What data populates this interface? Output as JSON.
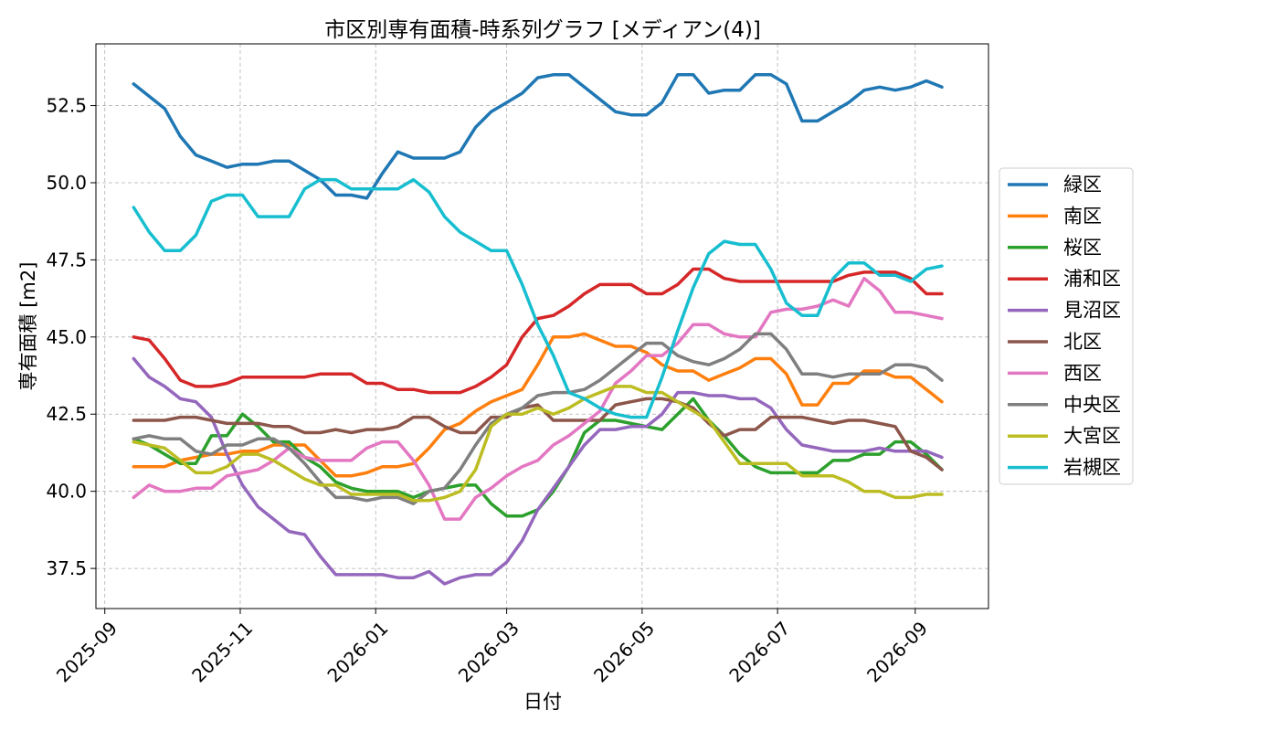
{
  "chart_data": {
    "type": "line",
    "title": "市区別専有面積-時系列グラフ [メディアン(4)]",
    "xlabel": "日付",
    "ylabel": "専有面積 [m2]",
    "x_start": "2025-09-14",
    "x_step_days": 7,
    "xlim": [
      "2025-08-28",
      "2026-10-04"
    ],
    "ylim": [
      36.2,
      54.5
    ],
    "xticks": [
      "2025-09",
      "2025-11",
      "2026-01",
      "2026-03",
      "2026-05",
      "2026-07",
      "2026-09"
    ],
    "xtick_dates": [
      "2025-09-01",
      "2025-11-01",
      "2026-01-01",
      "2026-03-01",
      "2026-05-01",
      "2026-07-01",
      "2026-09-01"
    ],
    "yticks": [
      "37.5",
      "40.0",
      "42.5",
      "45.0",
      "47.5",
      "50.0",
      "52.5"
    ],
    "ytick_values": [
      37.5,
      40.0,
      42.5,
      45.0,
      47.5,
      50.0,
      52.5
    ],
    "grid": true,
    "legend_position": "right",
    "series": [
      {
        "name": "緑区",
        "color": "#1f77b4",
        "values": [
          53.2,
          52.8,
          52.4,
          51.5,
          50.9,
          50.7,
          50.5,
          50.6,
          50.6,
          50.7,
          50.7,
          50.4,
          50.1,
          49.6,
          49.6,
          49.5,
          50.3,
          51.0,
          50.8,
          50.8,
          50.8,
          51.0,
          51.8,
          52.3,
          52.6,
          52.9,
          53.4,
          53.5,
          53.5,
          53.1,
          52.7,
          52.3,
          52.2,
          52.2,
          52.6,
          53.5,
          53.5,
          52.9,
          53.0,
          53.0,
          53.5,
          53.5,
          53.2,
          52.0,
          52.0,
          52.3,
          52.6,
          53.0,
          53.1,
          53.0,
          53.1,
          53.3,
          53.1
        ]
      },
      {
        "name": "南区",
        "color": "#ff7f0e",
        "values": [
          40.8,
          40.8,
          40.8,
          41.0,
          41.1,
          41.2,
          41.2,
          41.3,
          41.3,
          41.5,
          41.5,
          41.5,
          41.0,
          40.5,
          40.5,
          40.6,
          40.8,
          40.8,
          40.9,
          41.4,
          42.0,
          42.2,
          42.6,
          42.9,
          43.1,
          43.3,
          44.1,
          45.0,
          45.0,
          45.1,
          44.9,
          44.7,
          44.7,
          44.5,
          44.1,
          43.9,
          43.9,
          43.6,
          43.8,
          44.0,
          44.3,
          44.3,
          43.8,
          42.8,
          42.8,
          43.5,
          43.5,
          43.9,
          43.9,
          43.7,
          43.7,
          43.3,
          42.9
        ]
      },
      {
        "name": "桜区",
        "color": "#2ca02c",
        "values": [
          41.7,
          41.5,
          41.2,
          40.9,
          40.9,
          41.8,
          41.8,
          42.5,
          42.1,
          41.6,
          41.6,
          41.1,
          40.8,
          40.3,
          40.1,
          40.0,
          40.0,
          40.0,
          39.8,
          40.0,
          40.1,
          40.2,
          40.2,
          39.6,
          39.2,
          39.2,
          39.4,
          40.0,
          40.8,
          41.9,
          42.3,
          42.3,
          42.2,
          42.1,
          42.0,
          42.5,
          43.0,
          42.3,
          41.8,
          41.2,
          40.8,
          40.6,
          40.6,
          40.6,
          40.6,
          41.0,
          41.0,
          41.2,
          41.2,
          41.6,
          41.6,
          41.2,
          40.7
        ]
      },
      {
        "name": "浦和区",
        "color": "#d62728",
        "values": [
          45.0,
          44.9,
          44.3,
          43.6,
          43.4,
          43.4,
          43.5,
          43.7,
          43.7,
          43.7,
          43.7,
          43.7,
          43.8,
          43.8,
          43.8,
          43.5,
          43.5,
          43.3,
          43.3,
          43.2,
          43.2,
          43.2,
          43.4,
          43.7,
          44.1,
          45.0,
          45.6,
          45.7,
          46.0,
          46.4,
          46.7,
          46.7,
          46.7,
          46.4,
          46.4,
          46.7,
          47.2,
          47.2,
          46.9,
          46.8,
          46.8,
          46.8,
          46.8,
          46.8,
          46.8,
          46.8,
          47.0,
          47.1,
          47.1,
          47.1,
          46.9,
          46.4,
          46.4
        ]
      },
      {
        "name": "見沼区",
        "color": "#9467bd",
        "values": [
          44.3,
          43.7,
          43.4,
          43.0,
          42.9,
          42.4,
          41.2,
          40.2,
          39.5,
          39.1,
          38.7,
          38.6,
          37.9,
          37.3,
          37.3,
          37.3,
          37.3,
          37.2,
          37.2,
          37.4,
          37.0,
          37.2,
          37.3,
          37.3,
          37.7,
          38.4,
          39.4,
          40.1,
          40.8,
          41.5,
          42.0,
          42.0,
          42.1,
          42.1,
          42.5,
          43.2,
          43.2,
          43.1,
          43.1,
          43.0,
          43.0,
          42.7,
          42.0,
          41.5,
          41.4,
          41.3,
          41.3,
          41.3,
          41.4,
          41.3,
          41.3,
          41.3,
          41.1
        ]
      },
      {
        "name": "北区",
        "color": "#8c564b",
        "values": [
          42.3,
          42.3,
          42.3,
          42.4,
          42.4,
          42.3,
          42.2,
          42.2,
          42.2,
          42.1,
          42.1,
          41.9,
          41.9,
          42.0,
          41.9,
          42.0,
          42.0,
          42.1,
          42.4,
          42.4,
          42.1,
          41.9,
          41.9,
          42.4,
          42.4,
          42.7,
          42.8,
          42.3,
          42.3,
          42.3,
          42.3,
          42.8,
          42.9,
          43.0,
          43.0,
          42.9,
          42.7,
          42.2,
          41.8,
          42.0,
          42.0,
          42.4,
          42.4,
          42.4,
          42.3,
          42.2,
          42.3,
          42.3,
          42.2,
          42.1,
          41.3,
          41.1,
          40.7
        ]
      },
      {
        "name": "西区",
        "color": "#e377c2",
        "values": [
          39.8,
          40.2,
          40.0,
          40.0,
          40.1,
          40.1,
          40.5,
          40.6,
          40.7,
          41.0,
          41.4,
          41.1,
          41.0,
          41.0,
          41.0,
          41.4,
          41.6,
          41.6,
          41.0,
          40.2,
          39.1,
          39.1,
          39.8,
          40.1,
          40.5,
          40.8,
          41.0,
          41.5,
          41.8,
          42.2,
          42.6,
          43.5,
          43.9,
          44.4,
          44.4,
          44.8,
          45.4,
          45.4,
          45.1,
          45.0,
          45.0,
          45.8,
          45.9,
          45.9,
          46.0,
          46.2,
          46.0,
          46.9,
          46.5,
          45.8,
          45.8,
          45.7,
          45.6
        ]
      },
      {
        "name": "中央区",
        "color": "#7f7f7f",
        "values": [
          41.7,
          41.8,
          41.7,
          41.7,
          41.3,
          41.2,
          41.5,
          41.5,
          41.7,
          41.7,
          41.4,
          40.9,
          40.3,
          39.8,
          39.8,
          39.7,
          39.8,
          39.8,
          39.6,
          40.0,
          40.1,
          40.7,
          41.5,
          42.2,
          42.5,
          42.7,
          43.1,
          43.2,
          43.2,
          43.3,
          43.6,
          44.0,
          44.4,
          44.8,
          44.8,
          44.4,
          44.2,
          44.1,
          44.3,
          44.6,
          45.1,
          45.1,
          44.6,
          43.8,
          43.8,
          43.7,
          43.8,
          43.8,
          43.8,
          44.1,
          44.1,
          44.0,
          43.6
        ]
      },
      {
        "name": "大宮区",
        "color": "#bcbd22",
        "values": [
          41.6,
          41.5,
          41.4,
          41.0,
          40.6,
          40.6,
          40.8,
          41.2,
          41.2,
          41.0,
          40.7,
          40.4,
          40.2,
          40.2,
          39.9,
          39.9,
          39.9,
          39.9,
          39.7,
          39.7,
          39.8,
          40.0,
          40.7,
          42.1,
          42.5,
          42.5,
          42.7,
          42.5,
          42.7,
          43.0,
          43.2,
          43.4,
          43.4,
          43.2,
          43.2,
          42.9,
          42.6,
          42.3,
          41.6,
          40.9,
          40.9,
          40.9,
          40.9,
          40.5,
          40.5,
          40.5,
          40.3,
          40.0,
          40.0,
          39.8,
          39.8,
          39.9,
          39.9
        ]
      },
      {
        "name": "岩槻区",
        "color": "#17becf",
        "values": [
          49.2,
          48.4,
          47.8,
          47.8,
          48.3,
          49.4,
          49.6,
          49.6,
          48.9,
          48.9,
          48.9,
          49.8,
          50.1,
          50.1,
          49.8,
          49.8,
          49.8,
          49.8,
          50.1,
          49.7,
          48.9,
          48.4,
          48.1,
          47.8,
          47.8,
          46.7,
          45.4,
          44.4,
          43.2,
          43.0,
          42.7,
          42.5,
          42.4,
          42.4,
          43.7,
          45.2,
          46.6,
          47.7,
          48.1,
          48.0,
          48.0,
          47.2,
          46.1,
          45.7,
          45.7,
          46.9,
          47.4,
          47.4,
          47.0,
          47.0,
          46.8,
          47.2,
          47.3
        ]
      }
    ]
  }
}
